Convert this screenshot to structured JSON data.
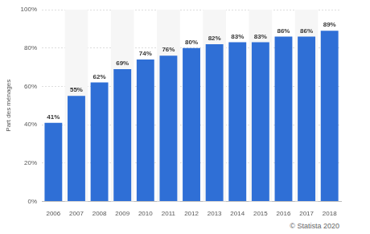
{
  "chart_data": {
    "type": "bar",
    "y_label": "Part des ménages",
    "credit": "© Statista 2020",
    "categories": [
      "2006",
      "2007",
      "2008",
      "2009",
      "2010",
      "2011",
      "2012",
      "2013",
      "2014",
      "2015",
      "2016",
      "2017",
      "2018"
    ],
    "values": [
      41,
      55,
      62,
      69,
      74,
      76,
      80,
      82,
      83,
      83,
      86,
      86,
      89
    ],
    "value_labels": [
      "41%",
      "55%",
      "62%",
      "69%",
      "74%",
      "76%",
      "80%",
      "82%",
      "83%",
      "83%",
      "86%",
      "86%",
      "89%"
    ],
    "color": "#2f6fd6",
    "ylim": [
      0,
      100
    ],
    "yticks": [
      {
        "value": 0,
        "label": "0%"
      },
      {
        "value": 20,
        "label": "20%"
      },
      {
        "value": 40,
        "label": "40%"
      },
      {
        "value": 60,
        "label": "60%"
      },
      {
        "value": 80,
        "label": "80%"
      },
      {
        "value": 100,
        "label": "100%"
      }
    ],
    "grid": true,
    "data_labels": true
  }
}
